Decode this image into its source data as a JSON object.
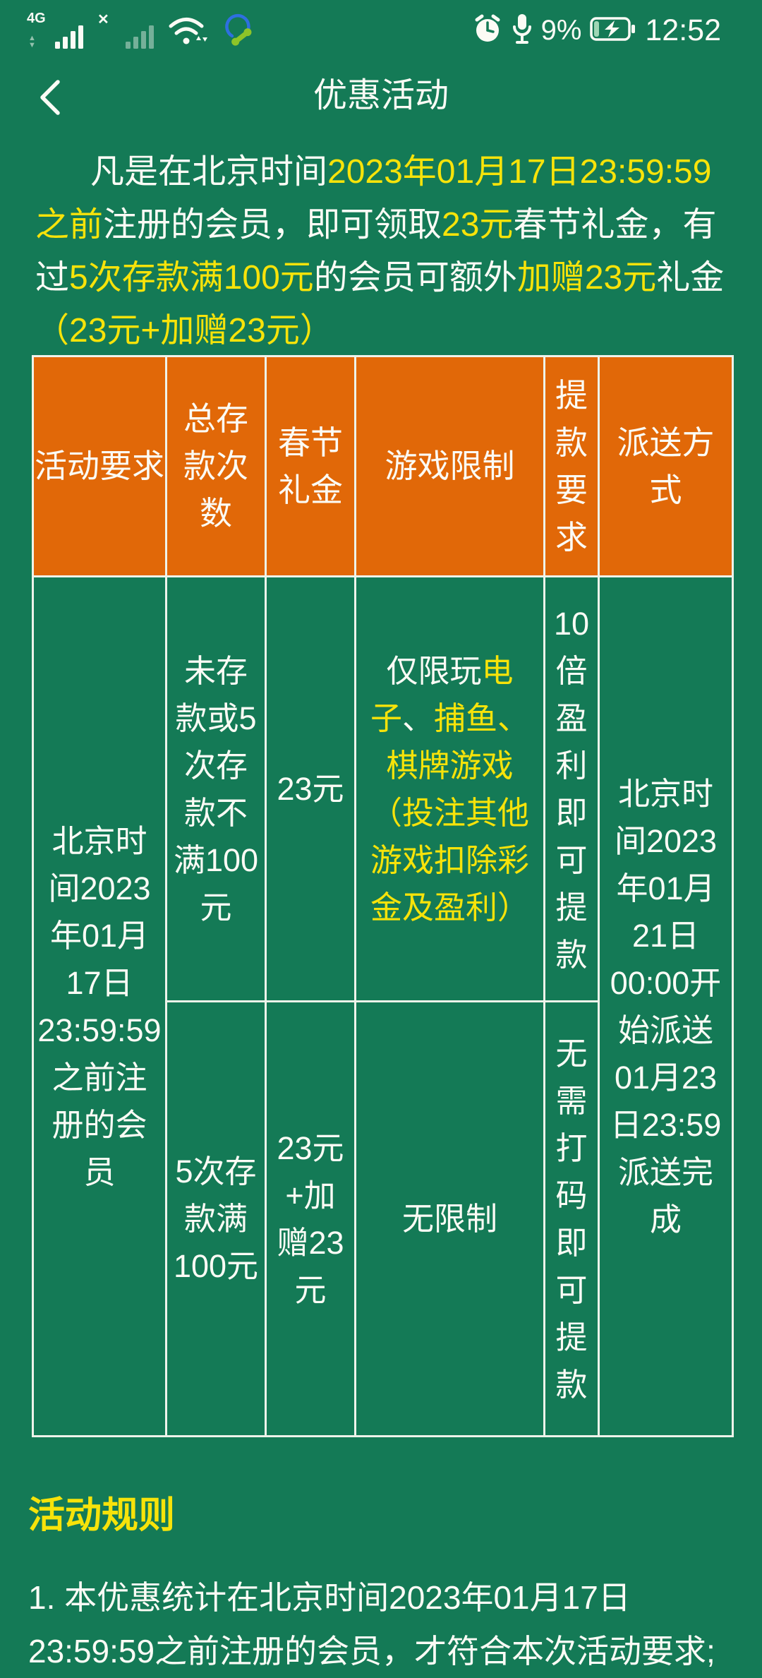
{
  "colors": {
    "background_green": "#147a56",
    "table_header_orange": "#e16808",
    "highlight_yellow": "#f7e30a",
    "text_white": "#fbfbf5",
    "table_border": "#eef3ea"
  },
  "status_bar": {
    "network_type": "4G",
    "no_service_mark": "✕",
    "battery_percent": "9%",
    "time": "12:52"
  },
  "header": {
    "title": "优惠活动"
  },
  "intro": {
    "segments": [
      {
        "text": "凡是在北京时间",
        "hl": false
      },
      {
        "text": "2023年01月17日23:59:59之前",
        "hl": true
      },
      {
        "text": "注册的会员，即可领取",
        "hl": false
      },
      {
        "text": "23元",
        "hl": true
      },
      {
        "text": "春节礼金，有过",
        "hl": false
      },
      {
        "text": "5次存款满100元",
        "hl": true
      },
      {
        "text": "的会员可额外",
        "hl": false
      },
      {
        "text": "加赠23元",
        "hl": true
      },
      {
        "text": "礼金",
        "hl": false
      },
      {
        "text": "（23元+加赠23元）",
        "hl": true
      }
    ]
  },
  "table": {
    "headers": [
      "活动要求",
      "总存款次数",
      "春节礼金",
      "游戏限制",
      "提款要求",
      "派送方式"
    ],
    "requirement": "北京时间2023年01月17日23:59:59之前注册的会员",
    "delivery": "北京时间2023年01月21日00:00开始派送01月23日23:59派送完成",
    "row1": {
      "deposit": "未存款或5次存款不满100元",
      "gift": "23元",
      "game_limit": [
        {
          "text": "仅限玩",
          "hl": false
        },
        {
          "text": "电子",
          "hl": true
        },
        {
          "text": "、",
          "hl": false
        },
        {
          "text": "捕鱼",
          "hl": true
        },
        {
          "text": "、",
          "hl": true
        },
        {
          "text": "棋牌游戏（投注其他游戏扣除彩金及盈利）",
          "hl": true
        }
      ],
      "withdraw": "10倍盈利即可提款"
    },
    "row2": {
      "deposit": "5次存款满100元",
      "gift": "23元+加赠23元",
      "game_limit": "无限制",
      "withdraw": "无需打码即可提款"
    }
  },
  "rules": {
    "title": "活动规则",
    "items": [
      "1. 本优惠统计在北京时间2023年01月17日23:59:59之前注册的会员，才符合本次活动要求;"
    ]
  }
}
